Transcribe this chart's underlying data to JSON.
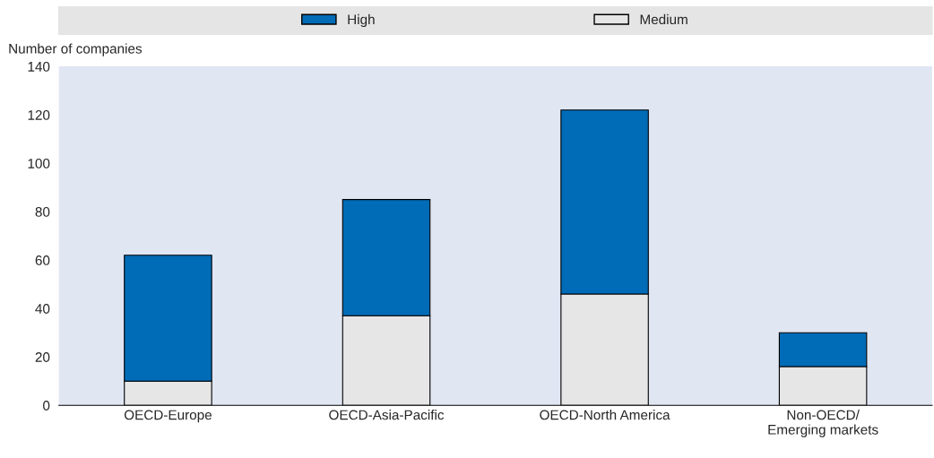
{
  "chart_data": {
    "type": "bar",
    "stacked": true,
    "ylabel": "Number of companies",
    "categories": [
      "OECD-Europe",
      "OECD-Asia-Pacific",
      "OECD-North America",
      "Non-OECD/\nEmerging markets"
    ],
    "series": [
      {
        "name": "Medium",
        "color": "#e6e6e6",
        "values": [
          10,
          37,
          46,
          16
        ]
      },
      {
        "name": "High",
        "color": "#006bb6",
        "values": [
          52,
          48,
          76,
          14
        ]
      }
    ],
    "ylim": [
      0,
      140
    ],
    "yticks": [
      0,
      20,
      40,
      60,
      80,
      100,
      120,
      140
    ],
    "grid": false,
    "legend": "top"
  }
}
